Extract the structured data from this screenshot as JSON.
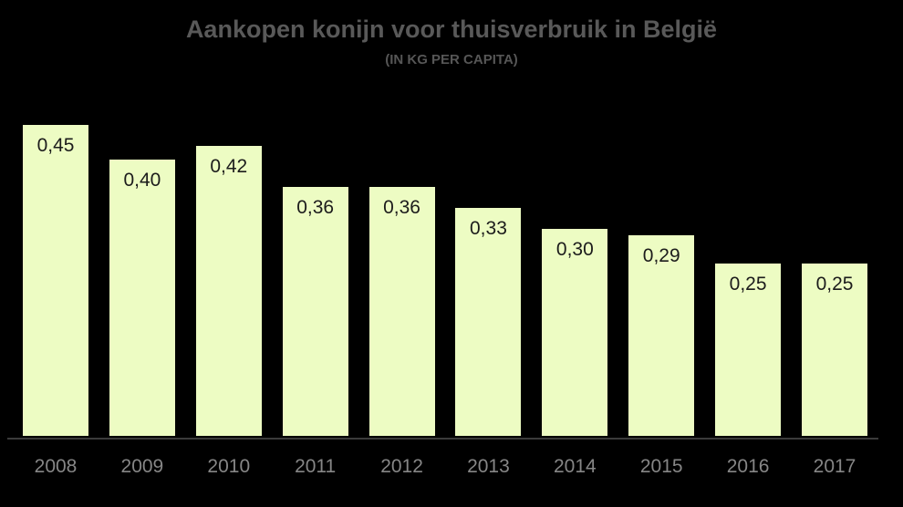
{
  "chart_data": {
    "type": "bar",
    "title": "Aankopen konijn voor thuisverbruik in België",
    "subtitle": "(IN KG PER CAPITA)",
    "categories": [
      "2008",
      "2009",
      "2010",
      "2011",
      "2012",
      "2013",
      "2014",
      "2015",
      "2016",
      "2017"
    ],
    "values": [
      0.45,
      0.4,
      0.42,
      0.36,
      0.36,
      0.33,
      0.3,
      0.29,
      0.25,
      0.25
    ],
    "value_labels": [
      "0,45",
      "0,40",
      "0,42",
      "0,36",
      "0,36",
      "0,33",
      "0,30",
      "0,29",
      "0,25",
      "0,25"
    ],
    "xlabel": "",
    "ylabel": "",
    "ylim": [
      0,
      0.45
    ],
    "grid": false,
    "legend": "none",
    "colors": {
      "background": "#000000",
      "bar_fill": "#edfcc3",
      "bar_value_label": "#1c1c1c",
      "title_text": "#595959",
      "subtitle_text": "#565656",
      "axis_tick_label": "#868686",
      "axis_line": "#3b3b3b"
    }
  }
}
